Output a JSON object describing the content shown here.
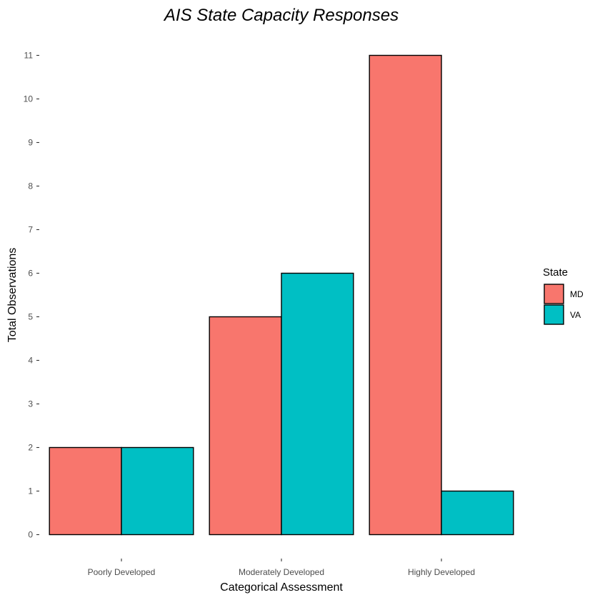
{
  "chart_data": {
    "type": "bar",
    "title": "AIS State Capacity Responses",
    "xlabel": "Categorical Assessment",
    "ylabel": "Total Observations",
    "categories": [
      "Poorly Developed",
      "Moderately Developed",
      "Highly Developed"
    ],
    "series": [
      {
        "name": "MD",
        "color": "#F8766D",
        "values": [
          2,
          5,
          11
        ]
      },
      {
        "name": "VA",
        "color": "#00BFC4",
        "values": [
          2,
          6,
          1
        ]
      }
    ],
    "ylim": [
      0,
      11
    ],
    "yticks": [
      0,
      1,
      2,
      3,
      4,
      5,
      6,
      7,
      8,
      9,
      10,
      11
    ],
    "grid": false,
    "legend": {
      "title": "State",
      "position": "right"
    },
    "bar_outline_color": "#000000"
  }
}
